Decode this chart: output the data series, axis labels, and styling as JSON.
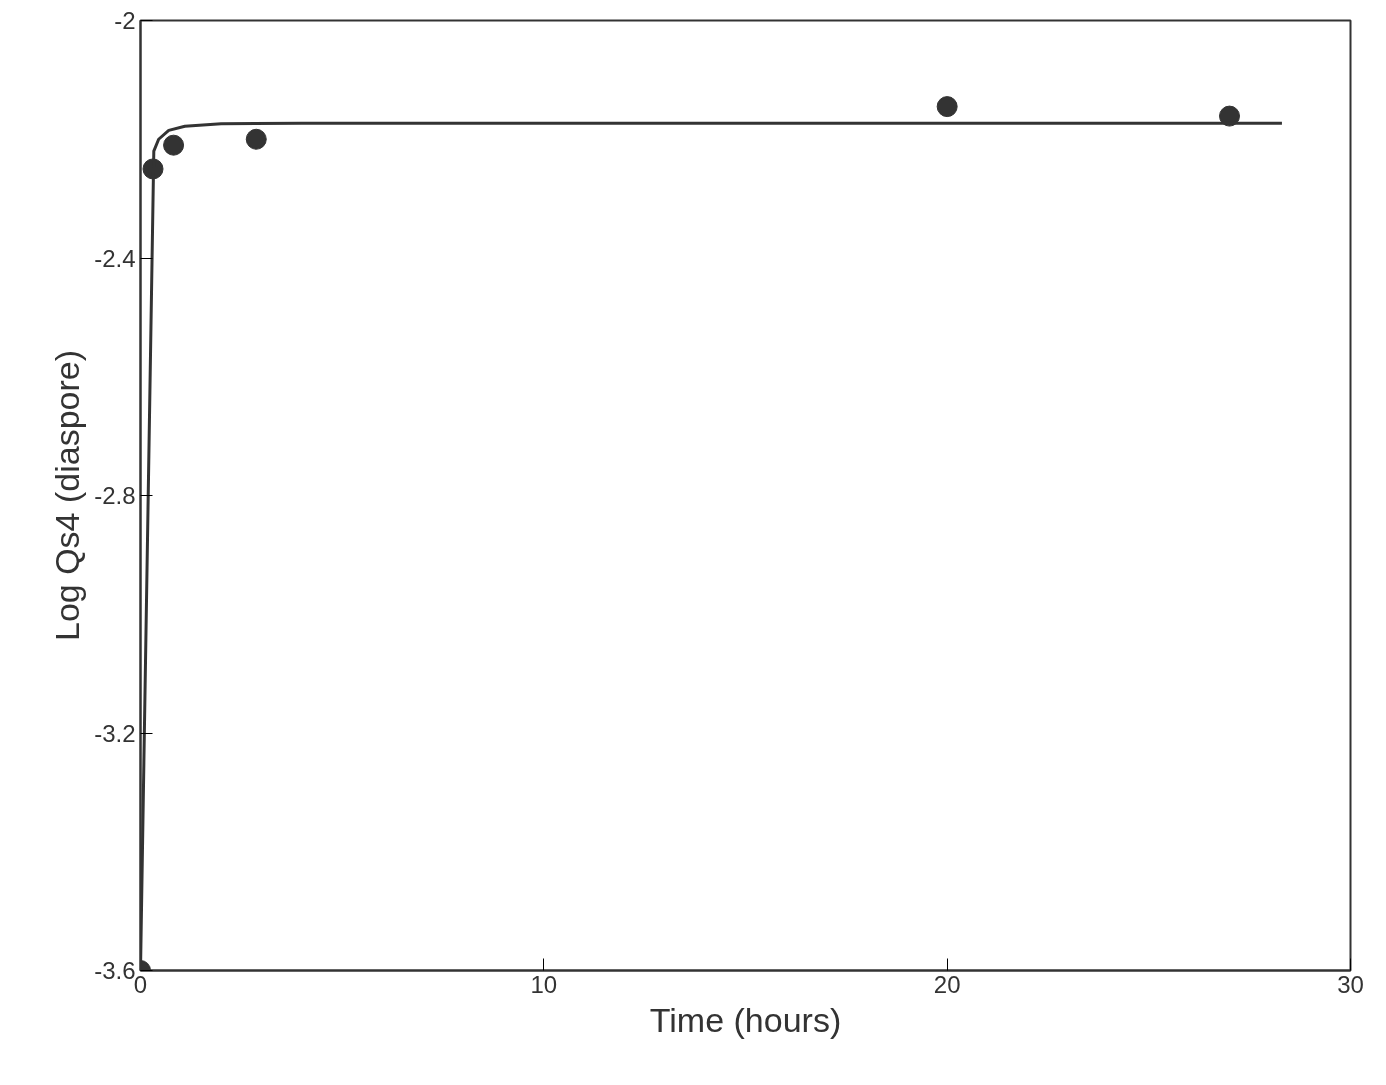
{
  "chart_data": {
    "type": "scatter",
    "xlabel": "Time (hours)",
    "ylabel": "Log Qs4 (diaspore)",
    "xlim": [
      0,
      30
    ],
    "ylim": [
      -3.6,
      -2
    ],
    "xticks": [
      0,
      10,
      20,
      30
    ],
    "yticks": [
      -3.6,
      -3.2,
      -2.8,
      -2.4,
      -2
    ],
    "grid": false,
    "marker": "circle",
    "series": [
      {
        "color": "#333333",
        "x": [
          0,
          0.31,
          0.82,
          2.87,
          20.0,
          27.0
        ],
        "values": [
          -3.6,
          -2.25,
          -2.21,
          -2.2,
          -2.145,
          -2.161
        ]
      },
      {
        "type": "line",
        "color": "#333333",
        "line_style": "solid",
        "marker": "none",
        "x": [
          0,
          0.33,
          0.45,
          0.7,
          1.1,
          2,
          4,
          28.3
        ],
        "values": [
          -3.6,
          -2.22,
          -2.2,
          -2.185,
          -2.178,
          -2.174,
          -2.173,
          -2.173
        ]
      }
    ]
  }
}
